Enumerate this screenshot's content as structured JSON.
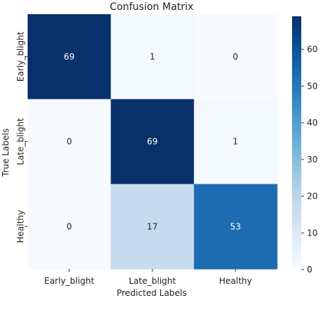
{
  "chart_data": {
    "type": "heatmap",
    "title": "Confusion Matrix",
    "xlabel": "Predicted Labels",
    "ylabel": "True Labels",
    "x_categories": [
      "Early_blight",
      "Late_blight",
      "Healthy"
    ],
    "y_categories": [
      "Early_blight",
      "Late_blight",
      "Healthy"
    ],
    "values": [
      [
        69,
        1,
        0
      ],
      [
        0,
        69,
        1
      ],
      [
        0,
        17,
        53
      ]
    ],
    "colorbar": {
      "colormap": "Blues",
      "range": [
        0,
        69
      ],
      "ticks": [
        0,
        10,
        20,
        30,
        40,
        50,
        60
      ]
    },
    "colors": {
      "low": "#f7fbff",
      "high": "#08306b"
    }
  }
}
